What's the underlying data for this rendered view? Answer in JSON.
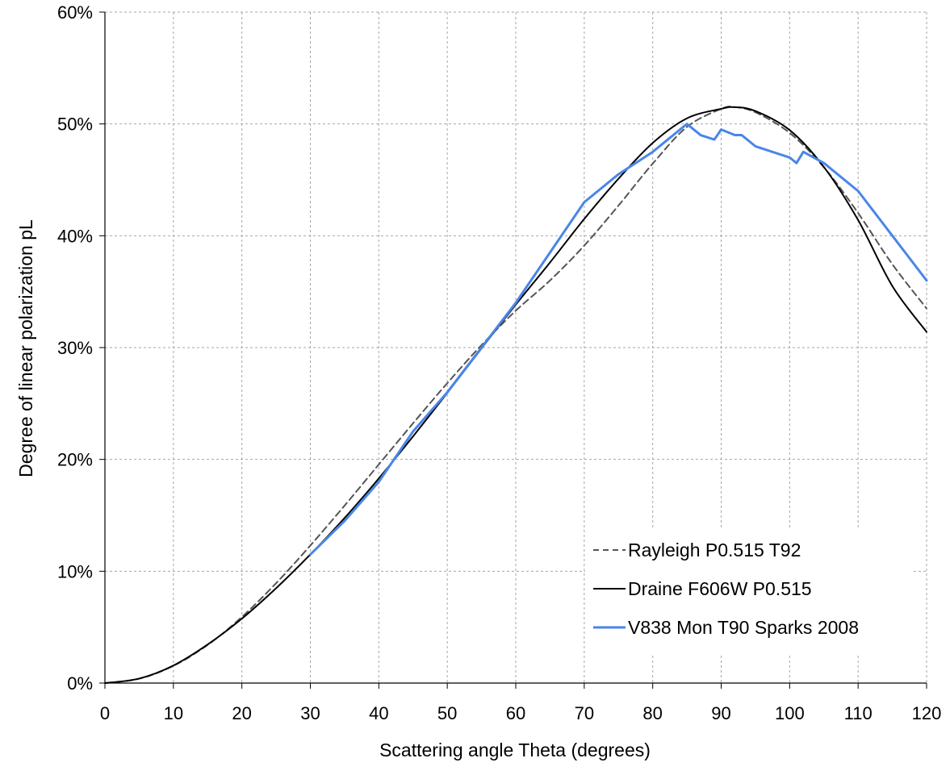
{
  "chart_data": {
    "type": "line",
    "xlabel": "Scattering angle Theta (degrees)",
    "ylabel": "Degree of linear polarization pL",
    "xlim": [
      0,
      120
    ],
    "ylim": [
      0,
      0.6
    ],
    "x_ticks": [
      "0",
      "10",
      "20",
      "30",
      "40",
      "50",
      "60",
      "70",
      "80",
      "90",
      "100",
      "110",
      "120"
    ],
    "y_ticks": [
      "0%",
      "10%",
      "20%",
      "30%",
      "40%",
      "50%",
      "60%"
    ],
    "grid": true,
    "legend_position": "bottom-right",
    "series": [
      {
        "name": "Rayleigh P0.515 T92",
        "style": "dashed",
        "color": "#555555",
        "points": [
          [
            0,
            0
          ],
          [
            5,
            0.0039
          ],
          [
            10,
            0.0154
          ],
          [
            15,
            0.0341
          ],
          [
            20,
            0.0591
          ],
          [
            25,
            0.0893
          ],
          [
            30,
            0.123
          ],
          [
            35,
            0.1587
          ],
          [
            40,
            0.1955
          ],
          [
            45,
            0.2323
          ],
          [
            50,
            0.2682
          ],
          [
            55,
            0.3022
          ],
          [
            60,
            0.333
          ],
          [
            65,
            0.36
          ],
          [
            70,
            0.3912
          ],
          [
            75,
            0.427
          ],
          [
            80,
            0.4645
          ],
          [
            85,
            0.4973
          ],
          [
            90,
            0.5135
          ],
          [
            92,
            0.515
          ],
          [
            95,
            0.5104
          ],
          [
            100,
            0.492
          ],
          [
            105,
            0.4612
          ],
          [
            110,
            0.4203
          ],
          [
            115,
            0.3745
          ],
          [
            120,
            0.335
          ]
        ]
      },
      {
        "name": "Draine F606W P0.515",
        "style": "solid",
        "color": "#000000",
        "points": [
          [
            0,
            0
          ],
          [
            5,
            0.004
          ],
          [
            10,
            0.0157
          ],
          [
            15,
            0.0345
          ],
          [
            20,
            0.0576
          ],
          [
            25,
            0.0848
          ],
          [
            30,
            0.115
          ],
          [
            35,
            0.1476
          ],
          [
            40,
            0.183
          ],
          [
            45,
            0.2206
          ],
          [
            50,
            0.2594
          ],
          [
            55,
            0.2993
          ],
          [
            60,
            0.3384
          ],
          [
            65,
            0.3761
          ],
          [
            70,
            0.415
          ],
          [
            75,
            0.451
          ],
          [
            80,
            0.483
          ],
          [
            85,
            0.505
          ],
          [
            90,
            0.5135
          ],
          [
            92,
            0.515
          ],
          [
            95,
            0.5115
          ],
          [
            100,
            0.4945
          ],
          [
            105,
            0.4615
          ],
          [
            110,
            0.414
          ],
          [
            115,
            0.355
          ],
          [
            120,
            0.314
          ]
        ]
      },
      {
        "name": "V838 Mon T90 Sparks 2008",
        "style": "solid",
        "color": "#4a86e8",
        "points": [
          [
            30,
            0.115
          ],
          [
            35,
            0.145
          ],
          [
            40,
            0.18
          ],
          [
            45,
            0.225
          ],
          [
            50,
            0.26
          ],
          [
            55,
            0.3
          ],
          [
            60,
            0.34
          ],
          [
            65,
            0.385
          ],
          [
            70,
            0.43
          ],
          [
            75,
            0.455
          ],
          [
            80,
            0.475
          ],
          [
            85,
            0.5
          ],
          [
            87,
            0.49
          ],
          [
            89,
            0.486
          ],
          [
            90,
            0.495
          ],
          [
            92,
            0.49
          ],
          [
            93,
            0.49
          ],
          [
            95,
            0.48
          ],
          [
            100,
            0.47
          ],
          [
            101,
            0.465
          ],
          [
            102,
            0.475
          ],
          [
            105,
            0.465
          ],
          [
            110,
            0.44
          ],
          [
            115,
            0.4
          ],
          [
            120,
            0.36
          ]
        ]
      }
    ]
  }
}
